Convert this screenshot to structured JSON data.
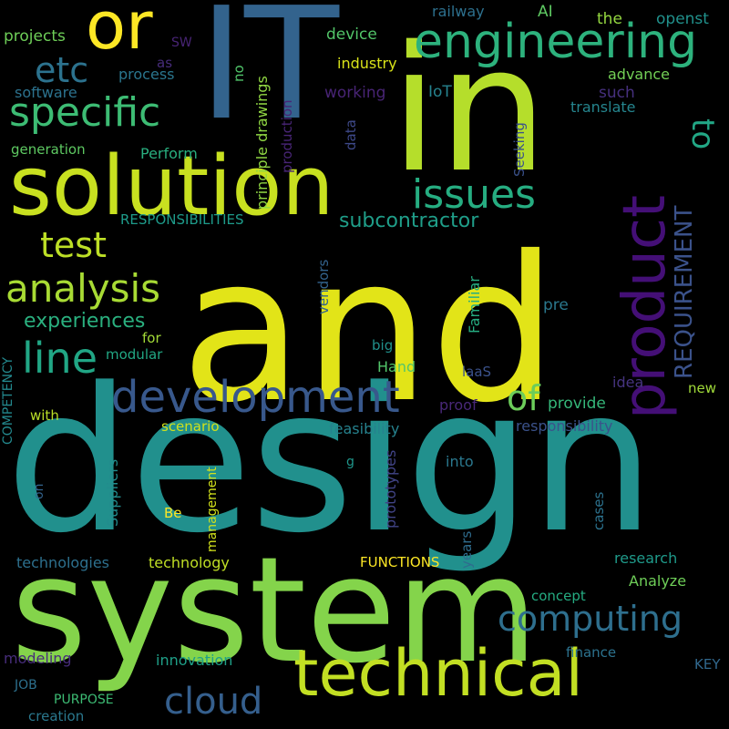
{
  "background": "#000000",
  "words": [
    {
      "text": "and",
      "color": "#e2e418"
    },
    {
      "text": "design",
      "color": "#21908d"
    },
    {
      "text": "IT",
      "color": "#33638d"
    },
    {
      "text": "in",
      "color": "#b5de2b"
    },
    {
      "text": "system",
      "color": "#84d44b"
    },
    {
      "text": "solution",
      "color": "#c8e020"
    },
    {
      "text": "technical",
      "color": "#c2df23"
    },
    {
      "text": "or",
      "color": "#fde725"
    },
    {
      "text": "engineering",
      "color": "#2db27d"
    },
    {
      "text": "product",
      "color": "#440f76"
    },
    {
      "text": "development",
      "color": "#38588c"
    },
    {
      "text": "specific",
      "color": "#3dbc74"
    },
    {
      "text": "etc",
      "color": "#2c728e"
    },
    {
      "text": "issues",
      "color": "#26ad81"
    },
    {
      "text": "analysis",
      "color": "#a8db34"
    },
    {
      "text": "test",
      "color": "#bddf26"
    },
    {
      "text": "line",
      "color": "#21a685"
    },
    {
      "text": "of",
      "color": "#6ccd5a"
    },
    {
      "text": "computing",
      "color": "#2e6f8e"
    },
    {
      "text": "cloud",
      "color": "#355f8d"
    },
    {
      "text": "to",
      "color": "#22a785"
    },
    {
      "text": "REQUIREMENT",
      "color": "#3b528b"
    },
    {
      "text": "subcontractor",
      "color": "#1f9e89"
    },
    {
      "text": "experiences",
      "color": "#2ab07f"
    },
    {
      "text": "RESPONSIBILITIES",
      "color": "#1e9b8a"
    },
    {
      "text": "principle drawings",
      "color": "#90d743"
    },
    {
      "text": "production",
      "color": "#482576"
    },
    {
      "text": "generation",
      "color": "#5ec962"
    },
    {
      "text": "Perform",
      "color": "#29af7f"
    },
    {
      "text": "software",
      "color": "#2c728e"
    },
    {
      "text": "projects",
      "color": "#6ece58"
    },
    {
      "text": "process",
      "color": "#2a768e"
    },
    {
      "text": "as",
      "color": "#472c7a"
    },
    {
      "text": "SW",
      "color": "#482475"
    },
    {
      "text": "no",
      "color": "#50c46a"
    },
    {
      "text": "railway",
      "color": "#2d708e"
    },
    {
      "text": "AI",
      "color": "#5ec962"
    },
    {
      "text": "the",
      "color": "#95d840"
    },
    {
      "text": "openst",
      "color": "#21918c"
    },
    {
      "text": "device",
      "color": "#52c569"
    },
    {
      "text": "industry",
      "color": "#d8e219"
    },
    {
      "text": "advance",
      "color": "#73d056"
    },
    {
      "text": "working",
      "color": "#482475"
    },
    {
      "text": "IoT",
      "color": "#26828e"
    },
    {
      "text": "such",
      "color": "#46307e"
    },
    {
      "text": "translate",
      "color": "#25858e"
    },
    {
      "text": "data",
      "color": "#3e4989"
    },
    {
      "text": "Seeking",
      "color": "#3b528b"
    },
    {
      "text": "vendors",
      "color": "#33638d"
    },
    {
      "text": "Familiar",
      "color": "#26ad81"
    },
    {
      "text": "pre",
      "color": "#2a788e"
    },
    {
      "text": "big",
      "color": "#21918c"
    },
    {
      "text": "Hand",
      "color": "#52c569"
    },
    {
      "text": "laaS",
      "color": "#3b528b"
    },
    {
      "text": "idea",
      "color": "#463480"
    },
    {
      "text": "new",
      "color": "#a0da39"
    },
    {
      "text": "proof",
      "color": "#482878"
    },
    {
      "text": "provide",
      "color": "#35b779"
    },
    {
      "text": "responsibility",
      "color": "#3b528b"
    },
    {
      "text": "feasibility",
      "color": "#26828e"
    },
    {
      "text": "for",
      "color": "#a2da37"
    },
    {
      "text": "modular",
      "color": "#22a884"
    },
    {
      "text": "with",
      "color": "#bade28"
    },
    {
      "text": "scenario",
      "color": "#d0e11c"
    },
    {
      "text": "COMPETENCY",
      "color": "#23898e"
    },
    {
      "text": "Suppliers",
      "color": "#228c8d"
    },
    {
      "text": "on",
      "color": "#33638d"
    },
    {
      "text": "management",
      "color": "#d2e21b"
    },
    {
      "text": "Be",
      "color": "#fde725"
    },
    {
      "text": "g",
      "color": "#1f968b"
    },
    {
      "text": "prototypes",
      "color": "#414487"
    },
    {
      "text": "into",
      "color": "#2a788e"
    },
    {
      "text": "cases",
      "color": "#2c728e"
    },
    {
      "text": "years",
      "color": "#2f6c8e"
    },
    {
      "text": "technologies",
      "color": "#2d708e"
    },
    {
      "text": "technology",
      "color": "#c0df25"
    },
    {
      "text": "FUNCTIONS",
      "color": "#fde725"
    },
    {
      "text": "research",
      "color": "#1f9a8a"
    },
    {
      "text": "Analyze",
      "color": "#6ece58"
    },
    {
      "text": "concept",
      "color": "#25ac82"
    },
    {
      "text": "modeling",
      "color": "#472d7b"
    },
    {
      "text": "innovation",
      "color": "#1fa088"
    },
    {
      "text": "finance",
      "color": "#2c728e"
    },
    {
      "text": "KEY",
      "color": "#31688e"
    },
    {
      "text": "JOB",
      "color": "#2d708e"
    },
    {
      "text": "PURPOSE",
      "color": "#3dbc74"
    },
    {
      "text": "creation",
      "color": "#2a788e"
    }
  ]
}
